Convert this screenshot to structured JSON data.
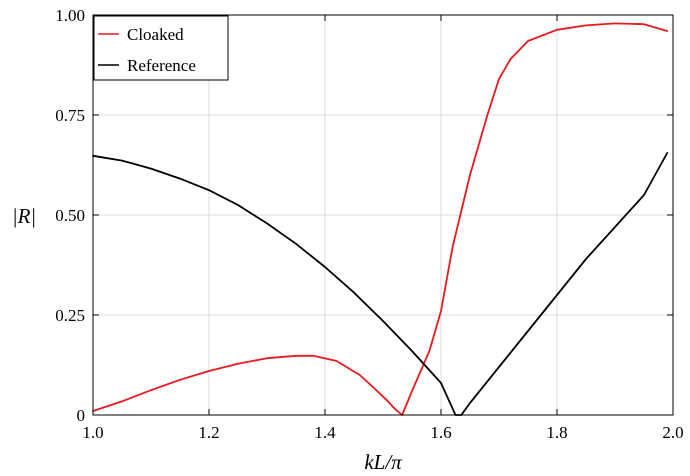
{
  "chart_data": {
    "type": "line",
    "xlabel": "kL/π",
    "ylabel": "|R|",
    "xlim": [
      1.0,
      2.0
    ],
    "ylim": [
      0,
      1.0
    ],
    "x_ticks": [
      1.0,
      1.2,
      1.4,
      1.6,
      1.8,
      2.0
    ],
    "x_tick_labels": [
      "1.0",
      "1.2",
      "1.4",
      "1.6",
      "1.8",
      "2.0"
    ],
    "y_ticks": [
      0,
      0.25,
      0.5,
      0.75,
      1.0
    ],
    "y_tick_labels": [
      "0",
      "0.25",
      "0.50",
      "0.75",
      "1.00"
    ],
    "grid": true,
    "legend_position": "top-left",
    "series": [
      {
        "name": "Cloaked",
        "color": "#e8191d",
        "x": [
          1.0,
          1.05,
          1.1,
          1.15,
          1.2,
          1.25,
          1.3,
          1.35,
          1.38,
          1.42,
          1.46,
          1.49,
          1.51,
          1.52,
          1.533,
          1.55,
          1.58,
          1.6,
          1.62,
          1.65,
          1.68,
          1.7,
          1.72,
          1.75,
          1.8,
          1.85,
          1.9,
          1.95,
          1.99
        ],
        "y": [
          0.01,
          0.034,
          0.062,
          0.088,
          0.11,
          0.128,
          0.142,
          0.148,
          0.148,
          0.135,
          0.1,
          0.06,
          0.032,
          0.016,
          0.0,
          0.06,
          0.16,
          0.26,
          0.42,
          0.6,
          0.75,
          0.84,
          0.89,
          0.935,
          0.963,
          0.974,
          0.979,
          0.977,
          0.96
        ]
      },
      {
        "name": "Reference",
        "color": "#000000",
        "x": [
          1.0,
          1.05,
          1.1,
          1.15,
          1.2,
          1.25,
          1.3,
          1.35,
          1.4,
          1.45,
          1.5,
          1.55,
          1.6,
          1.625,
          1.635,
          1.65,
          1.7,
          1.75,
          1.8,
          1.85,
          1.9,
          1.95,
          1.99
        ],
        "y": [
          0.648,
          0.636,
          0.616,
          0.591,
          0.562,
          0.525,
          0.479,
          0.428,
          0.37,
          0.306,
          0.235,
          0.16,
          0.08,
          0.0,
          0.0,
          0.03,
          0.12,
          0.21,
          0.3,
          0.39,
          0.47,
          0.55,
          0.655
        ]
      }
    ]
  }
}
